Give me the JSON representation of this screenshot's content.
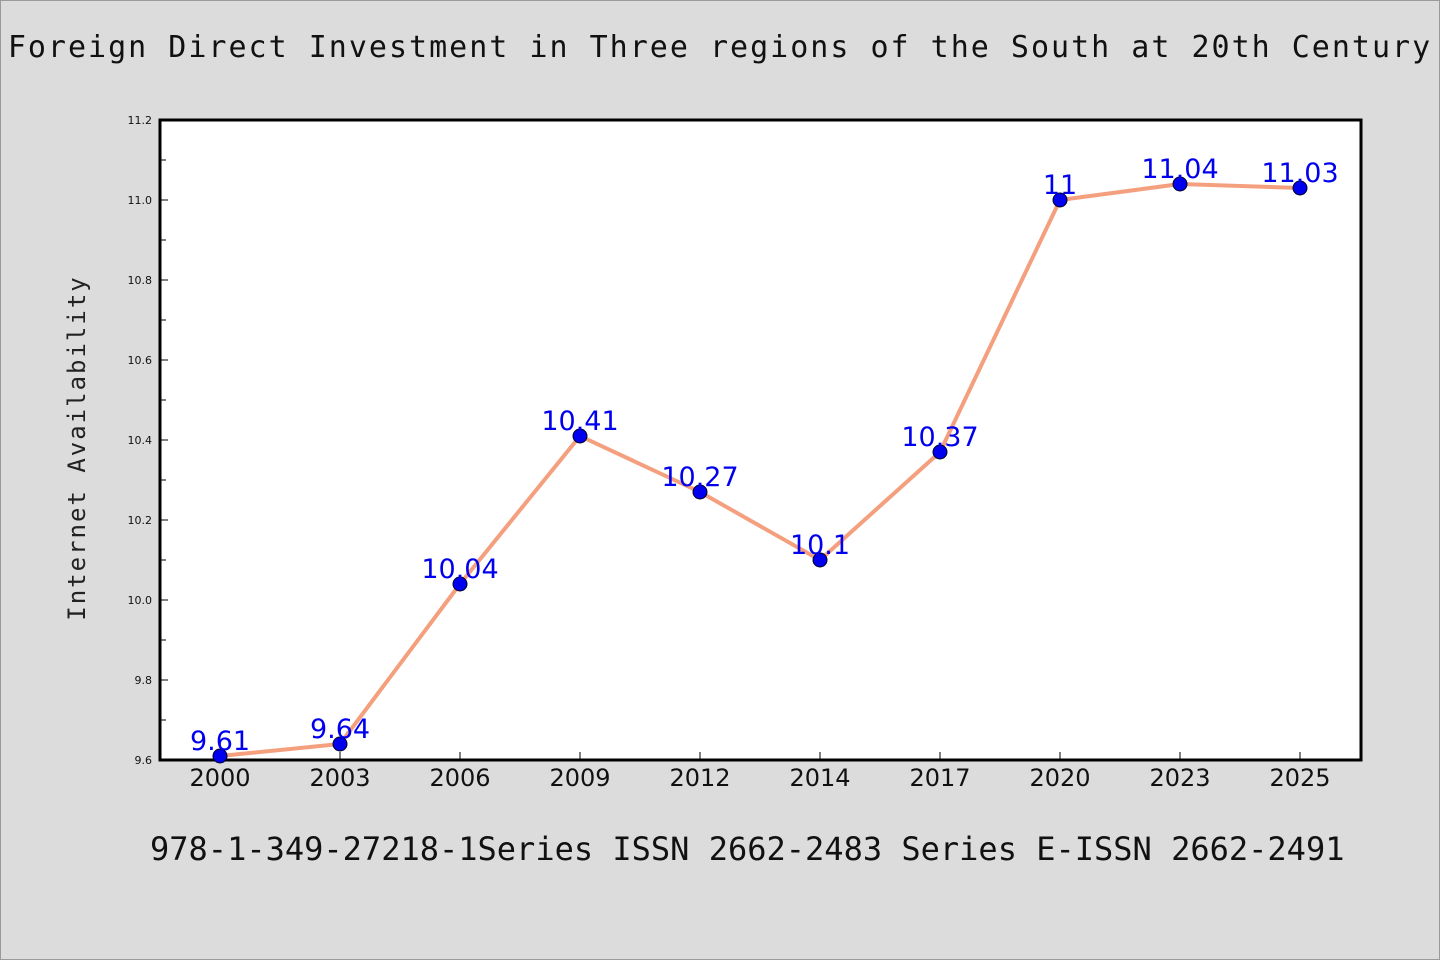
{
  "chart_data": {
    "type": "line",
    "title": "Foreign Direct Investment in Three regions of the South at 20th Century",
    "xlabel": "",
    "ylabel": "Internet Availability",
    "categories": [
      "2000",
      "2003",
      "2006",
      "2009",
      "2012",
      "2014",
      "2017",
      "2020",
      "2023",
      "2025"
    ],
    "series": [
      {
        "values": [
          9.61,
          9.64,
          10.04,
          10.41,
          10.27,
          10.1,
          10.37,
          11,
          11.04,
          11.03
        ],
        "labels": [
          "9.61",
          "9.64",
          "10.04",
          "10.41",
          "10.27",
          "10.1",
          "10.37",
          "11",
          "11.04",
          "11.03"
        ]
      }
    ],
    "ylim": [
      9.6,
      11.2
    ],
    "yticks": [
      "9.6",
      "9.8",
      "10.0",
      "10.2",
      "10.4",
      "10.6",
      "10.8",
      "11.0",
      "11.2"
    ],
    "grid": false,
    "colors": {
      "line": "#f4a07f",
      "marker": "#0000ee",
      "label": "#0000ee"
    }
  },
  "footer": "978-1-349-27218-1Series ISSN 2662-2483 Series E-ISSN 2662-2491"
}
